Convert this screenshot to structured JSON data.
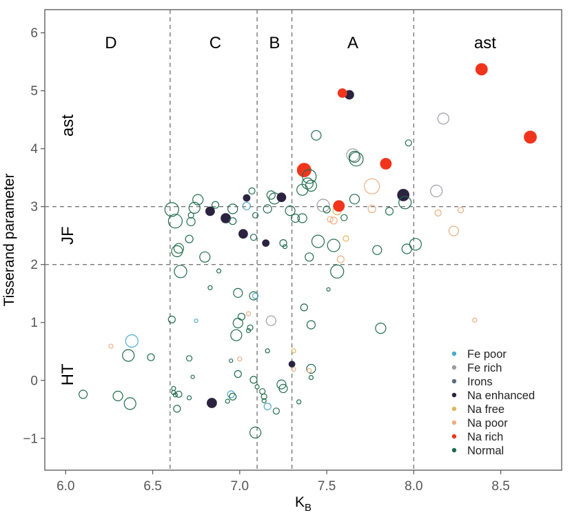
{
  "chart_data": {
    "type": "scatter",
    "xlabel": "K",
    "xlabel_sub": "B",
    "ylabel": "Tisserand parameter",
    "xlim": [
      5.88,
      8.85
    ],
    "ylim": [
      -1.55,
      6.4
    ],
    "xticks": [
      "6.0",
      "6.5",
      "7.0",
      "7.5",
      "8.0",
      "8.5"
    ],
    "yticks": [
      "−1",
      "0",
      "1",
      "2",
      "3",
      "4",
      "5",
      "6"
    ],
    "vertical_dividers": [
      6.6,
      7.1,
      7.3,
      8.0
    ],
    "horizontal_dividers": [
      2.0,
      3.0
    ],
    "column_labels": [
      {
        "text": "D",
        "x": 6.26
      },
      {
        "text": "C",
        "x": 6.86
      },
      {
        "text": "B",
        "x": 7.2
      },
      {
        "text": "A",
        "x": 7.65
      },
      {
        "text": "ast",
        "x": 8.41
      }
    ],
    "row_labels": [
      {
        "text": "ast",
        "y": 4.4
      },
      {
        "text": "JF",
        "y": 2.5
      },
      {
        "text": "HT",
        "y": 0.1
      }
    ],
    "legend_position": "bottom-right",
    "categories": [
      {
        "name": "Fe poor",
        "color": "#4ea8c9"
      },
      {
        "name": "Fe rich",
        "color": "#9c9aa6"
      },
      {
        "name": "Irons",
        "color": "#5b6e7d"
      },
      {
        "name": "Na enhanced",
        "color": "#2c2340"
      },
      {
        "name": "Na free",
        "color": "#e3b65a"
      },
      {
        "name": "Na poor",
        "color": "#ecae7f"
      },
      {
        "name": "Na rich",
        "color": "#f0351c"
      },
      {
        "name": "Normal",
        "color": "#1e6b4c"
      }
    ],
    "points": [
      {
        "x": 6.1,
        "y": -0.24,
        "s": 6,
        "c": "Normal"
      },
      {
        "x": 6.3,
        "y": -0.27,
        "s": 7,
        "c": "Normal"
      },
      {
        "x": 6.37,
        "y": -0.4,
        "s": 8.5,
        "c": "Normal"
      },
      {
        "x": 6.36,
        "y": 0.43,
        "s": 8.5,
        "c": "Normal"
      },
      {
        "x": 6.38,
        "y": 0.68,
        "s": 9,
        "c": "Fe poor"
      },
      {
        "x": 6.49,
        "y": 0.4,
        "s": 5,
        "c": "Normal"
      },
      {
        "x": 6.26,
        "y": 0.59,
        "s": 3,
        "c": "Na poor"
      },
      {
        "x": 6.61,
        "y": 1.05,
        "s": 5,
        "c": "Normal"
      },
      {
        "x": 6.62,
        "y": -0.14,
        "s": 3,
        "c": "Normal"
      },
      {
        "x": 6.62,
        "y": -0.21,
        "s": 3,
        "c": "Normal"
      },
      {
        "x": 6.63,
        "y": -0.25,
        "s": 3,
        "c": "Normal"
      },
      {
        "x": 6.65,
        "y": -0.24,
        "s": 4.5,
        "c": "Normal"
      },
      {
        "x": 6.64,
        "y": -0.49,
        "s": 5,
        "c": "Normal"
      },
      {
        "x": 6.71,
        "y": -0.3,
        "s": 3,
        "c": "Normal"
      },
      {
        "x": 6.71,
        "y": 0.38,
        "s": 4,
        "c": "Normal"
      },
      {
        "x": 6.73,
        "y": 0.06,
        "s": 2.5,
        "c": "Normal"
      },
      {
        "x": 6.75,
        "y": 1.03,
        "s": 2.5,
        "c": "Fe poor"
      },
      {
        "x": 6.84,
        "y": -0.39,
        "s": 7,
        "c": "Na enhanced",
        "f": true
      },
      {
        "x": 6.83,
        "y": 1.6,
        "s": 3,
        "c": "Normal"
      },
      {
        "x": 6.88,
        "y": 1.89,
        "s": 3,
        "c": "Normal"
      },
      {
        "x": 6.93,
        "y": -0.36,
        "s": 3,
        "c": "Normal"
      },
      {
        "x": 6.95,
        "y": -0.24,
        "s": 5,
        "c": "Fe poor"
      },
      {
        "x": 6.96,
        "y": -0.28,
        "s": 5,
        "c": "Normal"
      },
      {
        "x": 6.95,
        "y": 0.34,
        "s": 2.5,
        "c": "Normal"
      },
      {
        "x": 6.99,
        "y": 0.11,
        "s": 5,
        "c": "Normal"
      },
      {
        "x": 6.98,
        "y": 0.78,
        "s": 8,
        "c": "Normal"
      },
      {
        "x": 6.99,
        "y": 0.99,
        "s": 7,
        "c": "Normal"
      },
      {
        "x": 7.01,
        "y": 1.1,
        "s": 5,
        "c": "Normal"
      },
      {
        "x": 6.99,
        "y": 1.51,
        "s": 6.5,
        "c": "Normal"
      },
      {
        "x": 7.0,
        "y": 0.37,
        "s": 3,
        "c": "Na poor"
      },
      {
        "x": 7.05,
        "y": 1.15,
        "s": 3,
        "c": "Na poor"
      },
      {
        "x": 7.05,
        "y": 0.86,
        "s": 3,
        "c": "Normal"
      },
      {
        "x": 7.06,
        "y": 0.91,
        "s": 4,
        "c": "Normal"
      },
      {
        "x": 7.08,
        "y": 1.46,
        "s": 6,
        "c": "Normal"
      },
      {
        "x": 7.09,
        "y": 1.46,
        "s": 4,
        "c": "Fe poor"
      },
      {
        "x": 7.08,
        "y": 0.01,
        "s": 5,
        "c": "Normal"
      },
      {
        "x": 7.09,
        "y": -0.9,
        "s": 8,
        "c": "Normal"
      },
      {
        "x": 7.1,
        "y": -0.11,
        "s": 3,
        "c": "Normal"
      },
      {
        "x": 7.13,
        "y": -0.19,
        "s": 4,
        "c": "Normal"
      },
      {
        "x": 7.14,
        "y": -0.28,
        "s": 4,
        "c": "Normal"
      },
      {
        "x": 7.14,
        "y": -0.35,
        "s": 3,
        "c": "Normal"
      },
      {
        "x": 7.16,
        "y": -0.45,
        "s": 5,
        "c": "Fe poor"
      },
      {
        "x": 7.16,
        "y": 0.51,
        "s": 3,
        "c": "Normal"
      },
      {
        "x": 7.18,
        "y": 1.03,
        "s": 7,
        "c": "Fe rich"
      },
      {
        "x": 7.21,
        "y": -0.53,
        "s": 4.5,
        "c": "Normal"
      },
      {
        "x": 7.24,
        "y": -0.07,
        "s": 6.5,
        "c": "Normal"
      },
      {
        "x": 7.25,
        "y": -0.14,
        "s": 6,
        "c": "Normal"
      },
      {
        "x": 7.3,
        "y": 0.28,
        "s": 4.5,
        "c": "Na enhanced",
        "f": true
      },
      {
        "x": 7.31,
        "y": 0.51,
        "s": 3,
        "c": "Na free"
      },
      {
        "x": 7.31,
        "y": 0.19,
        "s": 3,
        "c": "Na poor"
      },
      {
        "x": 7.34,
        "y": -0.37,
        "s": 3,
        "c": "Normal"
      },
      {
        "x": 7.37,
        "y": 1.26,
        "s": 5,
        "c": "Normal"
      },
      {
        "x": 7.41,
        "y": 0.2,
        "s": 6.5,
        "c": "Normal"
      },
      {
        "x": 7.41,
        "y": 0.05,
        "s": 3,
        "c": "Normal"
      },
      {
        "x": 7.4,
        "y": 0.17,
        "s": 3,
        "c": "Na poor"
      },
      {
        "x": 7.41,
        "y": 0.96,
        "s": 6,
        "c": "Normal"
      },
      {
        "x": 7.51,
        "y": 1.57,
        "s": 2.5,
        "c": "Normal"
      },
      {
        "x": 7.81,
        "y": 0.9,
        "s": 7.5,
        "c": "Normal"
      },
      {
        "x": 8.35,
        "y": 1.04,
        "s": 3,
        "c": "Na poor"
      },
      {
        "x": 6.61,
        "y": 2.95,
        "s": 10,
        "c": "Normal"
      },
      {
        "x": 6.63,
        "y": 2.75,
        "s": 10,
        "c": "Normal"
      },
      {
        "x": 6.64,
        "y": 2.23,
        "s": 8,
        "c": "Normal"
      },
      {
        "x": 6.65,
        "y": 2.28,
        "s": 7,
        "c": "Normal"
      },
      {
        "x": 6.66,
        "y": 1.88,
        "s": 9,
        "c": "Normal"
      },
      {
        "x": 6.71,
        "y": 2.44,
        "s": 5.5,
        "c": "Normal"
      },
      {
        "x": 6.72,
        "y": 2.74,
        "s": 6,
        "c": "Normal"
      },
      {
        "x": 6.74,
        "y": 2.98,
        "s": 8,
        "c": "Normal"
      },
      {
        "x": 6.76,
        "y": 3.12,
        "s": 7.5,
        "c": "Normal"
      },
      {
        "x": 6.72,
        "y": 2.85,
        "s": 4,
        "c": "Normal"
      },
      {
        "x": 6.8,
        "y": 2.13,
        "s": 7.5,
        "c": "Normal"
      },
      {
        "x": 6.83,
        "y": 2.92,
        "s": 6.5,
        "c": "Na enhanced",
        "f": true
      },
      {
        "x": 6.86,
        "y": 3.03,
        "s": 5,
        "c": "Normal"
      },
      {
        "x": 6.92,
        "y": 2.8,
        "s": 7,
        "c": "Na enhanced",
        "f": true
      },
      {
        "x": 6.96,
        "y": 2.96,
        "s": 7,
        "c": "Normal"
      },
      {
        "x": 6.96,
        "y": 2.75,
        "s": 5,
        "c": "Normal"
      },
      {
        "x": 7.02,
        "y": 2.53,
        "s": 6.5,
        "c": "Na enhanced",
        "f": true
      },
      {
        "x": 7.04,
        "y": 3.15,
        "s": 5,
        "c": "Na enhanced",
        "f": true
      },
      {
        "x": 7.04,
        "y": 3.01,
        "s": 5.5,
        "c": "Fe poor"
      },
      {
        "x": 7.07,
        "y": 3.27,
        "s": 4.5,
        "c": "Normal"
      },
      {
        "x": 7.08,
        "y": 2.47,
        "s": 4.5,
        "c": "Normal"
      },
      {
        "x": 7.09,
        "y": 2.85,
        "s": 4,
        "c": "Normal"
      },
      {
        "x": 7.15,
        "y": 2.37,
        "s": 5,
        "c": "Na enhanced",
        "f": true
      },
      {
        "x": 7.16,
        "y": 2.96,
        "s": 6,
        "c": "Normal"
      },
      {
        "x": 7.18,
        "y": 3.2,
        "s": 6,
        "c": "Normal"
      },
      {
        "x": 7.2,
        "y": 3.14,
        "s": 8,
        "c": "Normal"
      },
      {
        "x": 7.24,
        "y": 3.16,
        "s": 6.5,
        "c": "Na enhanced",
        "f": true
      },
      {
        "x": 7.25,
        "y": 2.37,
        "s": 5,
        "c": "Normal"
      },
      {
        "x": 7.26,
        "y": 2.31,
        "s": 3,
        "c": "Normal"
      },
      {
        "x": 7.29,
        "y": 2.93,
        "s": 7,
        "c": "Normal"
      },
      {
        "x": 7.32,
        "y": 2.8,
        "s": 6,
        "c": "Normal"
      },
      {
        "x": 7.36,
        "y": 2.8,
        "s": 6.5,
        "c": "Normal"
      },
      {
        "x": 7.36,
        "y": 3.29,
        "s": 8,
        "c": "Normal"
      },
      {
        "x": 7.37,
        "y": 3.63,
        "s": 10,
        "c": "Na rich",
        "f": true
      },
      {
        "x": 7.39,
        "y": 3.4,
        "s": 8,
        "c": "Normal"
      },
      {
        "x": 7.4,
        "y": 3.52,
        "s": 10,
        "c": "Normal"
      },
      {
        "x": 7.41,
        "y": 3.36,
        "s": 8,
        "c": "Normal"
      },
      {
        "x": 7.4,
        "y": 2.13,
        "s": 6,
        "c": "Normal"
      },
      {
        "x": 7.44,
        "y": 4.23,
        "s": 7,
        "c": "Normal"
      },
      {
        "x": 7.45,
        "y": 2.4,
        "s": 9,
        "c": "Normal"
      },
      {
        "x": 7.48,
        "y": 3.02,
        "s": 9,
        "c": "Fe rich"
      },
      {
        "x": 7.5,
        "y": 2.95,
        "s": 5,
        "c": "Normal"
      },
      {
        "x": 7.52,
        "y": 2.78,
        "s": 4,
        "c": "Na poor"
      },
      {
        "x": 7.54,
        "y": 2.33,
        "s": 9,
        "c": "Normal"
      },
      {
        "x": 7.54,
        "y": 2.76,
        "s": 5,
        "c": "Na poor"
      },
      {
        "x": 7.56,
        "y": 2.93,
        "s": 6,
        "c": "Na free"
      },
      {
        "x": 7.56,
        "y": 1.88,
        "s": 9.5,
        "c": "Normal"
      },
      {
        "x": 7.57,
        "y": 3.01,
        "s": 8,
        "c": "Na rich",
        "f": true
      },
      {
        "x": 7.58,
        "y": 2.09,
        "s": 5,
        "c": "Na poor"
      },
      {
        "x": 7.6,
        "y": 2.81,
        "s": 4.5,
        "c": "Normal"
      },
      {
        "x": 7.61,
        "y": 2.45,
        "s": 4,
        "c": "Na free"
      },
      {
        "x": 7.63,
        "y": 4.93,
        "s": 6.5,
        "c": "Na enhanced",
        "f": true
      },
      {
        "x": 7.59,
        "y": 4.96,
        "s": 6.5,
        "c": "Na rich",
        "f": true
      },
      {
        "x": 7.65,
        "y": 3.89,
        "s": 9,
        "c": "Fe rich"
      },
      {
        "x": 7.67,
        "y": 3.82,
        "s": 10,
        "c": "Normal"
      },
      {
        "x": 7.66,
        "y": 3.86,
        "s": 8,
        "c": "Normal"
      },
      {
        "x": 7.66,
        "y": 3.13,
        "s": 7,
        "c": "Normal"
      },
      {
        "x": 7.76,
        "y": 3.35,
        "s": 11,
        "c": "Na poor"
      },
      {
        "x": 7.76,
        "y": 2.96,
        "s": 5.5,
        "c": "Na poor"
      },
      {
        "x": 7.79,
        "y": 2.25,
        "s": 6.5,
        "c": "Normal"
      },
      {
        "x": 7.84,
        "y": 3.74,
        "s": 8,
        "c": "Na rich",
        "f": true
      },
      {
        "x": 7.86,
        "y": 2.92,
        "s": 5.5,
        "c": "Normal"
      },
      {
        "x": 7.94,
        "y": 3.2,
        "s": 8.5,
        "c": "Na enhanced",
        "f": true
      },
      {
        "x": 7.95,
        "y": 3.07,
        "s": 9,
        "c": "Normal"
      },
      {
        "x": 7.96,
        "y": 2.27,
        "s": 7,
        "c": "Normal"
      },
      {
        "x": 7.97,
        "y": 4.1,
        "s": 4.5,
        "c": "Normal"
      },
      {
        "x": 8.01,
        "y": 2.35,
        "s": 8.5,
        "c": "Normal"
      },
      {
        "x": 8.13,
        "y": 3.27,
        "s": 8.5,
        "c": "Fe rich"
      },
      {
        "x": 8.14,
        "y": 2.89,
        "s": 4.5,
        "c": "Na poor"
      },
      {
        "x": 8.17,
        "y": 4.52,
        "s": 8,
        "c": "Fe rich"
      },
      {
        "x": 8.23,
        "y": 2.58,
        "s": 7,
        "c": "Na poor"
      },
      {
        "x": 8.27,
        "y": 2.94,
        "s": 4,
        "c": "Na poor"
      },
      {
        "x": 8.39,
        "y": 5.37,
        "s": 8.5,
        "c": "Na rich",
        "f": true
      },
      {
        "x": 8.67,
        "y": 4.2,
        "s": 9,
        "c": "Na rich",
        "f": true
      }
    ]
  }
}
